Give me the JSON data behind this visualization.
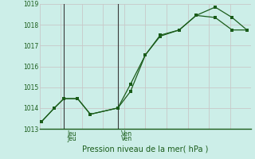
{
  "xlabel": "Pression niveau de la mer( hPa )",
  "bg_color": "#cceee8",
  "grid_color_major": "#c8c8c8",
  "grid_color_minor": "#dcdcdc",
  "line_color": "#1a5c1a",
  "ylim": [
    1013,
    1019
  ],
  "yticks": [
    1013,
    1014,
    1015,
    1016,
    1017,
    1018,
    1019
  ],
  "vline_x": [
    0.115,
    0.37
  ],
  "vline_labels": [
    "Jeu",
    "Ven"
  ],
  "series1_x": [
    0.01,
    0.07,
    0.115,
    0.18,
    0.24,
    0.37,
    0.43,
    0.5,
    0.57,
    0.66,
    0.74,
    0.83,
    0.91,
    0.98
  ],
  "series1_y": [
    1013.35,
    1014.0,
    1014.45,
    1014.45,
    1013.7,
    1014.0,
    1015.15,
    1016.55,
    1017.45,
    1017.75,
    1018.45,
    1018.35,
    1017.75,
    1017.75
  ],
  "series2_x": [
    0.01,
    0.07,
    0.115,
    0.18,
    0.24,
    0.37,
    0.43,
    0.5,
    0.57,
    0.66,
    0.74,
    0.83,
    0.91,
    0.98
  ],
  "series2_y": [
    1013.35,
    1014.0,
    1014.45,
    1014.45,
    1013.7,
    1014.0,
    1014.8,
    1016.55,
    1017.5,
    1017.75,
    1018.45,
    1018.85,
    1018.35,
    1017.75
  ]
}
